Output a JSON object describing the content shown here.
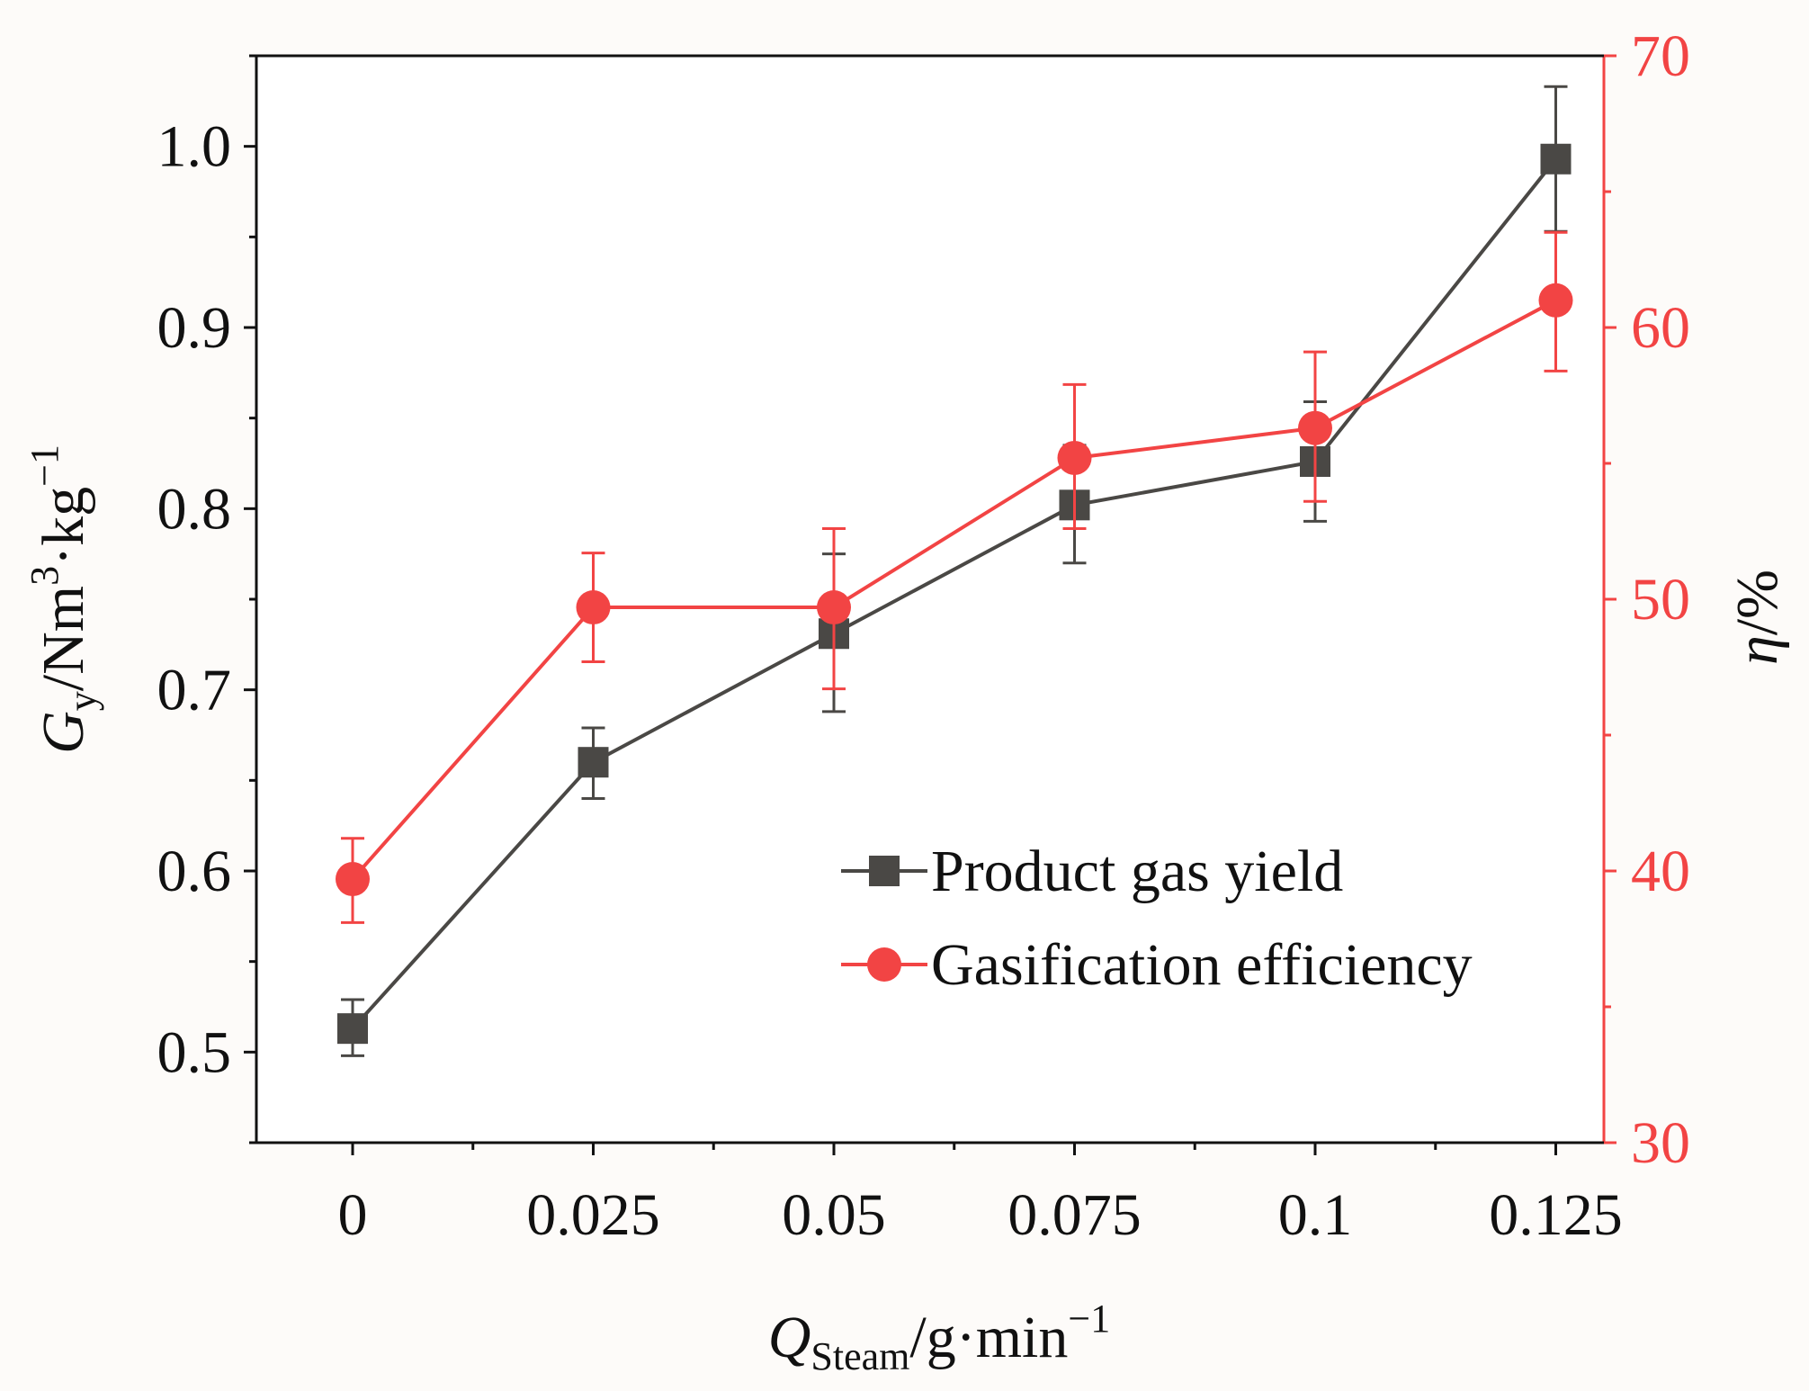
{
  "chart_data": {
    "type": "line",
    "x": [
      "0",
      "0.025",
      "0.05",
      "0.075",
      "0.1",
      "0.125"
    ],
    "x_values": [
      0,
      0.025,
      0.05,
      0.075,
      0.1,
      0.125
    ],
    "xlim": [
      -0.01,
      0.13
    ],
    "xlabel": {
      "main": "Q",
      "sub": "Steam",
      "rest": "/g·min",
      "sup": "−1"
    },
    "left_axis": {
      "ylim": [
        0.45,
        1.05
      ],
      "ticks": [
        0.5,
        0.6,
        0.7,
        0.8,
        0.9,
        1.0
      ],
      "tick_labels": [
        "0.5",
        "0.6",
        "0.7",
        "0.8",
        "0.9",
        "1.0"
      ],
      "label": {
        "main": "G",
        "sub": "y",
        "rest1": "/Nm",
        "sup1": "3",
        "rest2": "·kg",
        "sup2": "−1"
      }
    },
    "right_axis": {
      "ylim": [
        30,
        70
      ],
      "ticks": [
        30,
        40,
        50,
        60,
        70
      ],
      "tick_labels": [
        "30",
        "40",
        "50",
        "60",
        "70"
      ],
      "label": {
        "main": "η",
        "rest": "/%"
      }
    },
    "series": [
      {
        "name": "Product gas yield",
        "axis": "left",
        "marker": "square",
        "color": "#4a4845",
        "values": [
          0.513,
          0.66,
          0.731,
          0.802,
          0.826,
          0.993
        ],
        "err_low": [
          0.498,
          0.64,
          0.688,
          0.77,
          0.793,
          0.953
        ],
        "err_high": [
          0.529,
          0.679,
          0.775,
          0.835,
          0.859,
          1.033
        ]
      },
      {
        "name": "Gasification efficiency",
        "axis": "right",
        "marker": "circle",
        "color": "#f24444",
        "values": [
          39.7,
          49.7,
          49.7,
          55.2,
          56.3,
          61.0
        ],
        "err_low": [
          38.1,
          47.7,
          46.7,
          52.6,
          53.6,
          58.4
        ],
        "err_high": [
          41.2,
          51.7,
          52.6,
          57.9,
          59.1,
          63.5
        ]
      }
    ],
    "legend": {
      "position": "bottom-right"
    }
  }
}
